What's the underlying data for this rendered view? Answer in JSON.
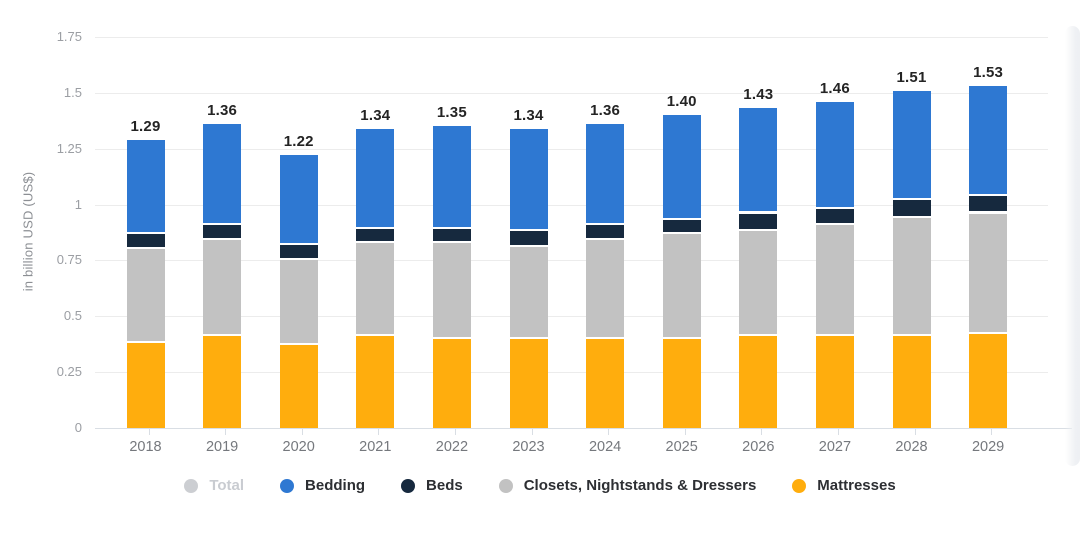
{
  "chart_data": {
    "type": "bar",
    "stacked": true,
    "title": "",
    "ylabel": "in billion USD (US$)",
    "ylim": [
      0,
      1.75
    ],
    "grid": true,
    "legend_position": "bottom",
    "ytick_values": [
      0,
      0.25,
      0.5,
      0.75,
      1,
      1.25,
      1.5,
      1.75
    ],
    "ytick_labels": [
      "0",
      "0.25",
      "0.5",
      "0.75",
      "1",
      "1.25",
      "1.5",
      "1.75"
    ],
    "categories": [
      "2018",
      "2019",
      "2020",
      "2021",
      "2022",
      "2023",
      "2024",
      "2025",
      "2026",
      "2027",
      "2028",
      "2029"
    ],
    "total_labels": [
      "1.29",
      "1.36",
      "1.22",
      "1.34",
      "1.35",
      "1.34",
      "1.36",
      "1.40",
      "1.43",
      "1.46",
      "1.51",
      "1.53"
    ],
    "totals": [
      1.29,
      1.36,
      1.22,
      1.34,
      1.35,
      1.34,
      1.36,
      1.4,
      1.43,
      1.46,
      1.51,
      1.53
    ],
    "series": [
      {
        "name": "Mattresses",
        "color": "#FFAD0D",
        "values": [
          0.38,
          0.41,
          0.37,
          0.41,
          0.4,
          0.4,
          0.4,
          0.4,
          0.41,
          0.41,
          0.41,
          0.42
        ]
      },
      {
        "name": "Closets, Nightstands & Dressers",
        "color": "#C2C2C2",
        "values": [
          0.42,
          0.43,
          0.38,
          0.42,
          0.43,
          0.41,
          0.44,
          0.47,
          0.47,
          0.5,
          0.53,
          0.54
        ]
      },
      {
        "name": "Beds",
        "color": "#16293E",
        "values": [
          0.07,
          0.07,
          0.07,
          0.06,
          0.06,
          0.07,
          0.07,
          0.06,
          0.08,
          0.07,
          0.08,
          0.08
        ]
      },
      {
        "name": "Bedding",
        "color": "#2E78D2",
        "values": [
          0.42,
          0.45,
          0.4,
          0.45,
          0.46,
          0.46,
          0.45,
          0.47,
          0.47,
          0.48,
          0.49,
          0.49
        ]
      }
    ]
  },
  "legend": {
    "items": [
      {
        "label": "Total",
        "color": "#CCCED2",
        "disabled": true
      },
      {
        "label": "Bedding",
        "color": "#2E78D2",
        "disabled": false
      },
      {
        "label": "Beds",
        "color": "#16293E",
        "disabled": false
      },
      {
        "label": "Closets, Nightstands & Dressers",
        "color": "#C2C2C2",
        "disabled": false
      },
      {
        "label": "Mattresses",
        "color": "#FFAD0D",
        "disabled": false
      }
    ]
  },
  "colors": {
    "grid": "#ececec",
    "axis_line": "#d9dee4",
    "axis_text": "#9b9ea3",
    "category_text": "#75787d",
    "value_label_text": "#242424"
  }
}
